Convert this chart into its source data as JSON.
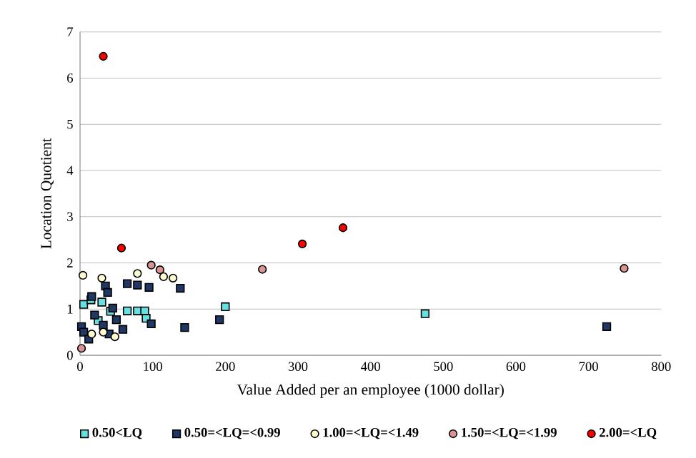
{
  "chart_data": {
    "type": "scatter",
    "xlabel": "Value Added per an employee (1000 dollar)",
    "ylabel": "Location Quotient",
    "xlim": [
      0,
      800
    ],
    "ylim": [
      0,
      7
    ],
    "xticks": [
      0,
      100,
      200,
      300,
      400,
      500,
      600,
      700,
      800
    ],
    "yticks": [
      0,
      1,
      2,
      3,
      4,
      5,
      6,
      7
    ],
    "grid": "y",
    "legend": "bottom",
    "series": [
      {
        "name": "0.50<LQ",
        "color": "#66e0e0",
        "marker": "square",
        "x": [
          200,
          65,
          79,
          89,
          91,
          5,
          15,
          30,
          42,
          25,
          475
        ],
        "values": [
          1.05,
          0.96,
          0.96,
          0.96,
          0.8,
          1.1,
          1.2,
          1.15,
          0.95,
          0.75,
          0.9
        ]
      },
      {
        "name": "0.50=<LQ=<0.99",
        "color": "#1f3864",
        "marker": "square",
        "x": [
          65,
          79,
          95,
          138,
          35,
          38,
          98,
          144,
          192,
          725,
          16,
          20,
          2,
          5,
          32,
          59,
          50,
          40,
          12,
          45
        ],
        "values": [
          1.55,
          1.52,
          1.47,
          1.45,
          1.5,
          1.36,
          0.68,
          0.6,
          0.77,
          0.62,
          1.27,
          0.87,
          0.62,
          0.5,
          0.65,
          0.56,
          0.77,
          0.46,
          0.35,
          1.02
        ]
      },
      {
        "name": "1.00=<LQ=<1.49",
        "color": "#fffbd0",
        "marker": "circle",
        "x": [
          4,
          30,
          79,
          128,
          115,
          48,
          16,
          32
        ],
        "values": [
          1.73,
          1.67,
          1.77,
          1.67,
          1.7,
          0.4,
          0.46,
          0.5
        ]
      },
      {
        "name": "1.50=<LQ=<1.99",
        "color": "#d99594",
        "marker": "circle",
        "x": [
          98,
          110,
          2,
          251,
          749
        ],
        "values": [
          1.95,
          1.85,
          0.15,
          1.86,
          1.88
        ]
      },
      {
        "name": "2.00=<LQ",
        "color": "#ff0000",
        "marker": "circle",
        "x": [
          32,
          57,
          306,
          362
        ],
        "values": [
          6.47,
          2.32,
          2.41,
          2.76
        ]
      }
    ]
  }
}
